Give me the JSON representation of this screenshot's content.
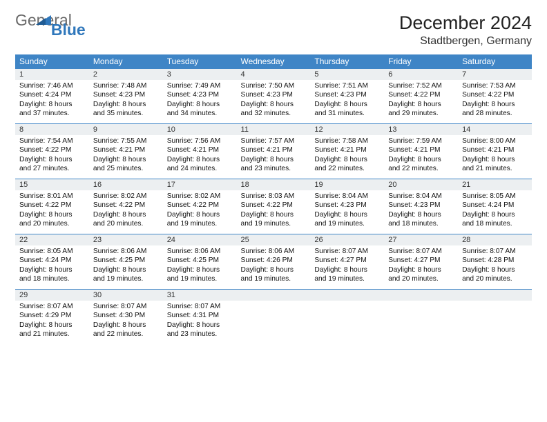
{
  "logo": {
    "general": "General",
    "blue": "Blue"
  },
  "title": "December 2024",
  "location": "Stadtbergen, Germany",
  "colors": {
    "header_bg": "#3f85c6",
    "header_text": "#ffffff",
    "daynum_bg": "#eceff1",
    "row_border": "#3f85c6",
    "logo_gray": "#6b6b6b",
    "logo_blue": "#2f77bb"
  },
  "dow": [
    "Sunday",
    "Monday",
    "Tuesday",
    "Wednesday",
    "Thursday",
    "Friday",
    "Saturday"
  ],
  "weeks": [
    [
      {
        "n": "1",
        "sr": "Sunrise: 7:46 AM",
        "ss": "Sunset: 4:24 PM",
        "d1": "Daylight: 8 hours",
        "d2": "and 37 minutes."
      },
      {
        "n": "2",
        "sr": "Sunrise: 7:48 AM",
        "ss": "Sunset: 4:23 PM",
        "d1": "Daylight: 8 hours",
        "d2": "and 35 minutes."
      },
      {
        "n": "3",
        "sr": "Sunrise: 7:49 AM",
        "ss": "Sunset: 4:23 PM",
        "d1": "Daylight: 8 hours",
        "d2": "and 34 minutes."
      },
      {
        "n": "4",
        "sr": "Sunrise: 7:50 AM",
        "ss": "Sunset: 4:23 PM",
        "d1": "Daylight: 8 hours",
        "d2": "and 32 minutes."
      },
      {
        "n": "5",
        "sr": "Sunrise: 7:51 AM",
        "ss": "Sunset: 4:23 PM",
        "d1": "Daylight: 8 hours",
        "d2": "and 31 minutes."
      },
      {
        "n": "6",
        "sr": "Sunrise: 7:52 AM",
        "ss": "Sunset: 4:22 PM",
        "d1": "Daylight: 8 hours",
        "d2": "and 29 minutes."
      },
      {
        "n": "7",
        "sr": "Sunrise: 7:53 AM",
        "ss": "Sunset: 4:22 PM",
        "d1": "Daylight: 8 hours",
        "d2": "and 28 minutes."
      }
    ],
    [
      {
        "n": "8",
        "sr": "Sunrise: 7:54 AM",
        "ss": "Sunset: 4:22 PM",
        "d1": "Daylight: 8 hours",
        "d2": "and 27 minutes."
      },
      {
        "n": "9",
        "sr": "Sunrise: 7:55 AM",
        "ss": "Sunset: 4:21 PM",
        "d1": "Daylight: 8 hours",
        "d2": "and 25 minutes."
      },
      {
        "n": "10",
        "sr": "Sunrise: 7:56 AM",
        "ss": "Sunset: 4:21 PM",
        "d1": "Daylight: 8 hours",
        "d2": "and 24 minutes."
      },
      {
        "n": "11",
        "sr": "Sunrise: 7:57 AM",
        "ss": "Sunset: 4:21 PM",
        "d1": "Daylight: 8 hours",
        "d2": "and 23 minutes."
      },
      {
        "n": "12",
        "sr": "Sunrise: 7:58 AM",
        "ss": "Sunset: 4:21 PM",
        "d1": "Daylight: 8 hours",
        "d2": "and 22 minutes."
      },
      {
        "n": "13",
        "sr": "Sunrise: 7:59 AM",
        "ss": "Sunset: 4:21 PM",
        "d1": "Daylight: 8 hours",
        "d2": "and 22 minutes."
      },
      {
        "n": "14",
        "sr": "Sunrise: 8:00 AM",
        "ss": "Sunset: 4:21 PM",
        "d1": "Daylight: 8 hours",
        "d2": "and 21 minutes."
      }
    ],
    [
      {
        "n": "15",
        "sr": "Sunrise: 8:01 AM",
        "ss": "Sunset: 4:22 PM",
        "d1": "Daylight: 8 hours",
        "d2": "and 20 minutes."
      },
      {
        "n": "16",
        "sr": "Sunrise: 8:02 AM",
        "ss": "Sunset: 4:22 PM",
        "d1": "Daylight: 8 hours",
        "d2": "and 20 minutes."
      },
      {
        "n": "17",
        "sr": "Sunrise: 8:02 AM",
        "ss": "Sunset: 4:22 PM",
        "d1": "Daylight: 8 hours",
        "d2": "and 19 minutes."
      },
      {
        "n": "18",
        "sr": "Sunrise: 8:03 AM",
        "ss": "Sunset: 4:22 PM",
        "d1": "Daylight: 8 hours",
        "d2": "and 19 minutes."
      },
      {
        "n": "19",
        "sr": "Sunrise: 8:04 AM",
        "ss": "Sunset: 4:23 PM",
        "d1": "Daylight: 8 hours",
        "d2": "and 19 minutes."
      },
      {
        "n": "20",
        "sr": "Sunrise: 8:04 AM",
        "ss": "Sunset: 4:23 PM",
        "d1": "Daylight: 8 hours",
        "d2": "and 18 minutes."
      },
      {
        "n": "21",
        "sr": "Sunrise: 8:05 AM",
        "ss": "Sunset: 4:24 PM",
        "d1": "Daylight: 8 hours",
        "d2": "and 18 minutes."
      }
    ],
    [
      {
        "n": "22",
        "sr": "Sunrise: 8:05 AM",
        "ss": "Sunset: 4:24 PM",
        "d1": "Daylight: 8 hours",
        "d2": "and 18 minutes."
      },
      {
        "n": "23",
        "sr": "Sunrise: 8:06 AM",
        "ss": "Sunset: 4:25 PM",
        "d1": "Daylight: 8 hours",
        "d2": "and 19 minutes."
      },
      {
        "n": "24",
        "sr": "Sunrise: 8:06 AM",
        "ss": "Sunset: 4:25 PM",
        "d1": "Daylight: 8 hours",
        "d2": "and 19 minutes."
      },
      {
        "n": "25",
        "sr": "Sunrise: 8:06 AM",
        "ss": "Sunset: 4:26 PM",
        "d1": "Daylight: 8 hours",
        "d2": "and 19 minutes."
      },
      {
        "n": "26",
        "sr": "Sunrise: 8:07 AM",
        "ss": "Sunset: 4:27 PM",
        "d1": "Daylight: 8 hours",
        "d2": "and 19 minutes."
      },
      {
        "n": "27",
        "sr": "Sunrise: 8:07 AM",
        "ss": "Sunset: 4:27 PM",
        "d1": "Daylight: 8 hours",
        "d2": "and 20 minutes."
      },
      {
        "n": "28",
        "sr": "Sunrise: 8:07 AM",
        "ss": "Sunset: 4:28 PM",
        "d1": "Daylight: 8 hours",
        "d2": "and 20 minutes."
      }
    ],
    [
      {
        "n": "29",
        "sr": "Sunrise: 8:07 AM",
        "ss": "Sunset: 4:29 PM",
        "d1": "Daylight: 8 hours",
        "d2": "and 21 minutes."
      },
      {
        "n": "30",
        "sr": "Sunrise: 8:07 AM",
        "ss": "Sunset: 4:30 PM",
        "d1": "Daylight: 8 hours",
        "d2": "and 22 minutes."
      },
      {
        "n": "31",
        "sr": "Sunrise: 8:07 AM",
        "ss": "Sunset: 4:31 PM",
        "d1": "Daylight: 8 hours",
        "d2": "and 23 minutes."
      },
      null,
      null,
      null,
      null
    ]
  ]
}
